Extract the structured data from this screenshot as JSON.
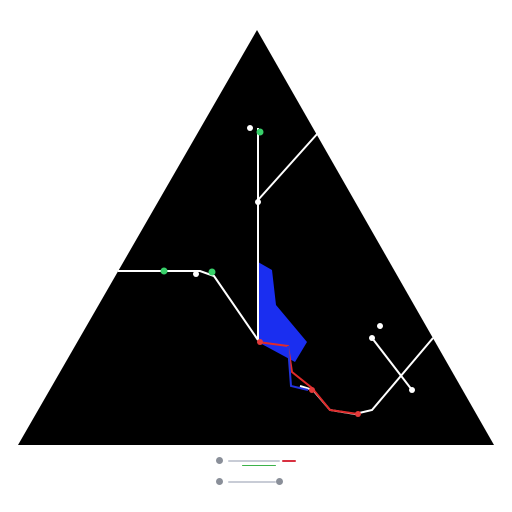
{
  "colors": {
    "background": "#ffffff",
    "triangle": "#000000",
    "route_white": "#ffffff",
    "route_red": "#e02a2a",
    "route_blue": "#2233dd",
    "area_blue": "#1a2ef0",
    "node_green": "#38d06a",
    "node_white": "#ffffff",
    "node_red": "#e23a3a",
    "legend_gray": "#b8bcc6",
    "legend_green": "#3cb24a",
    "legend_red": "#d83040"
  },
  "legend": {
    "items": [
      {
        "name": "legend-item-1",
        "icon": "gear-icon",
        "color": "#b8bcc6"
      },
      {
        "name": "legend-item-2",
        "icon": "gear-icon",
        "color": "#b8bcc6"
      }
    ]
  }
}
